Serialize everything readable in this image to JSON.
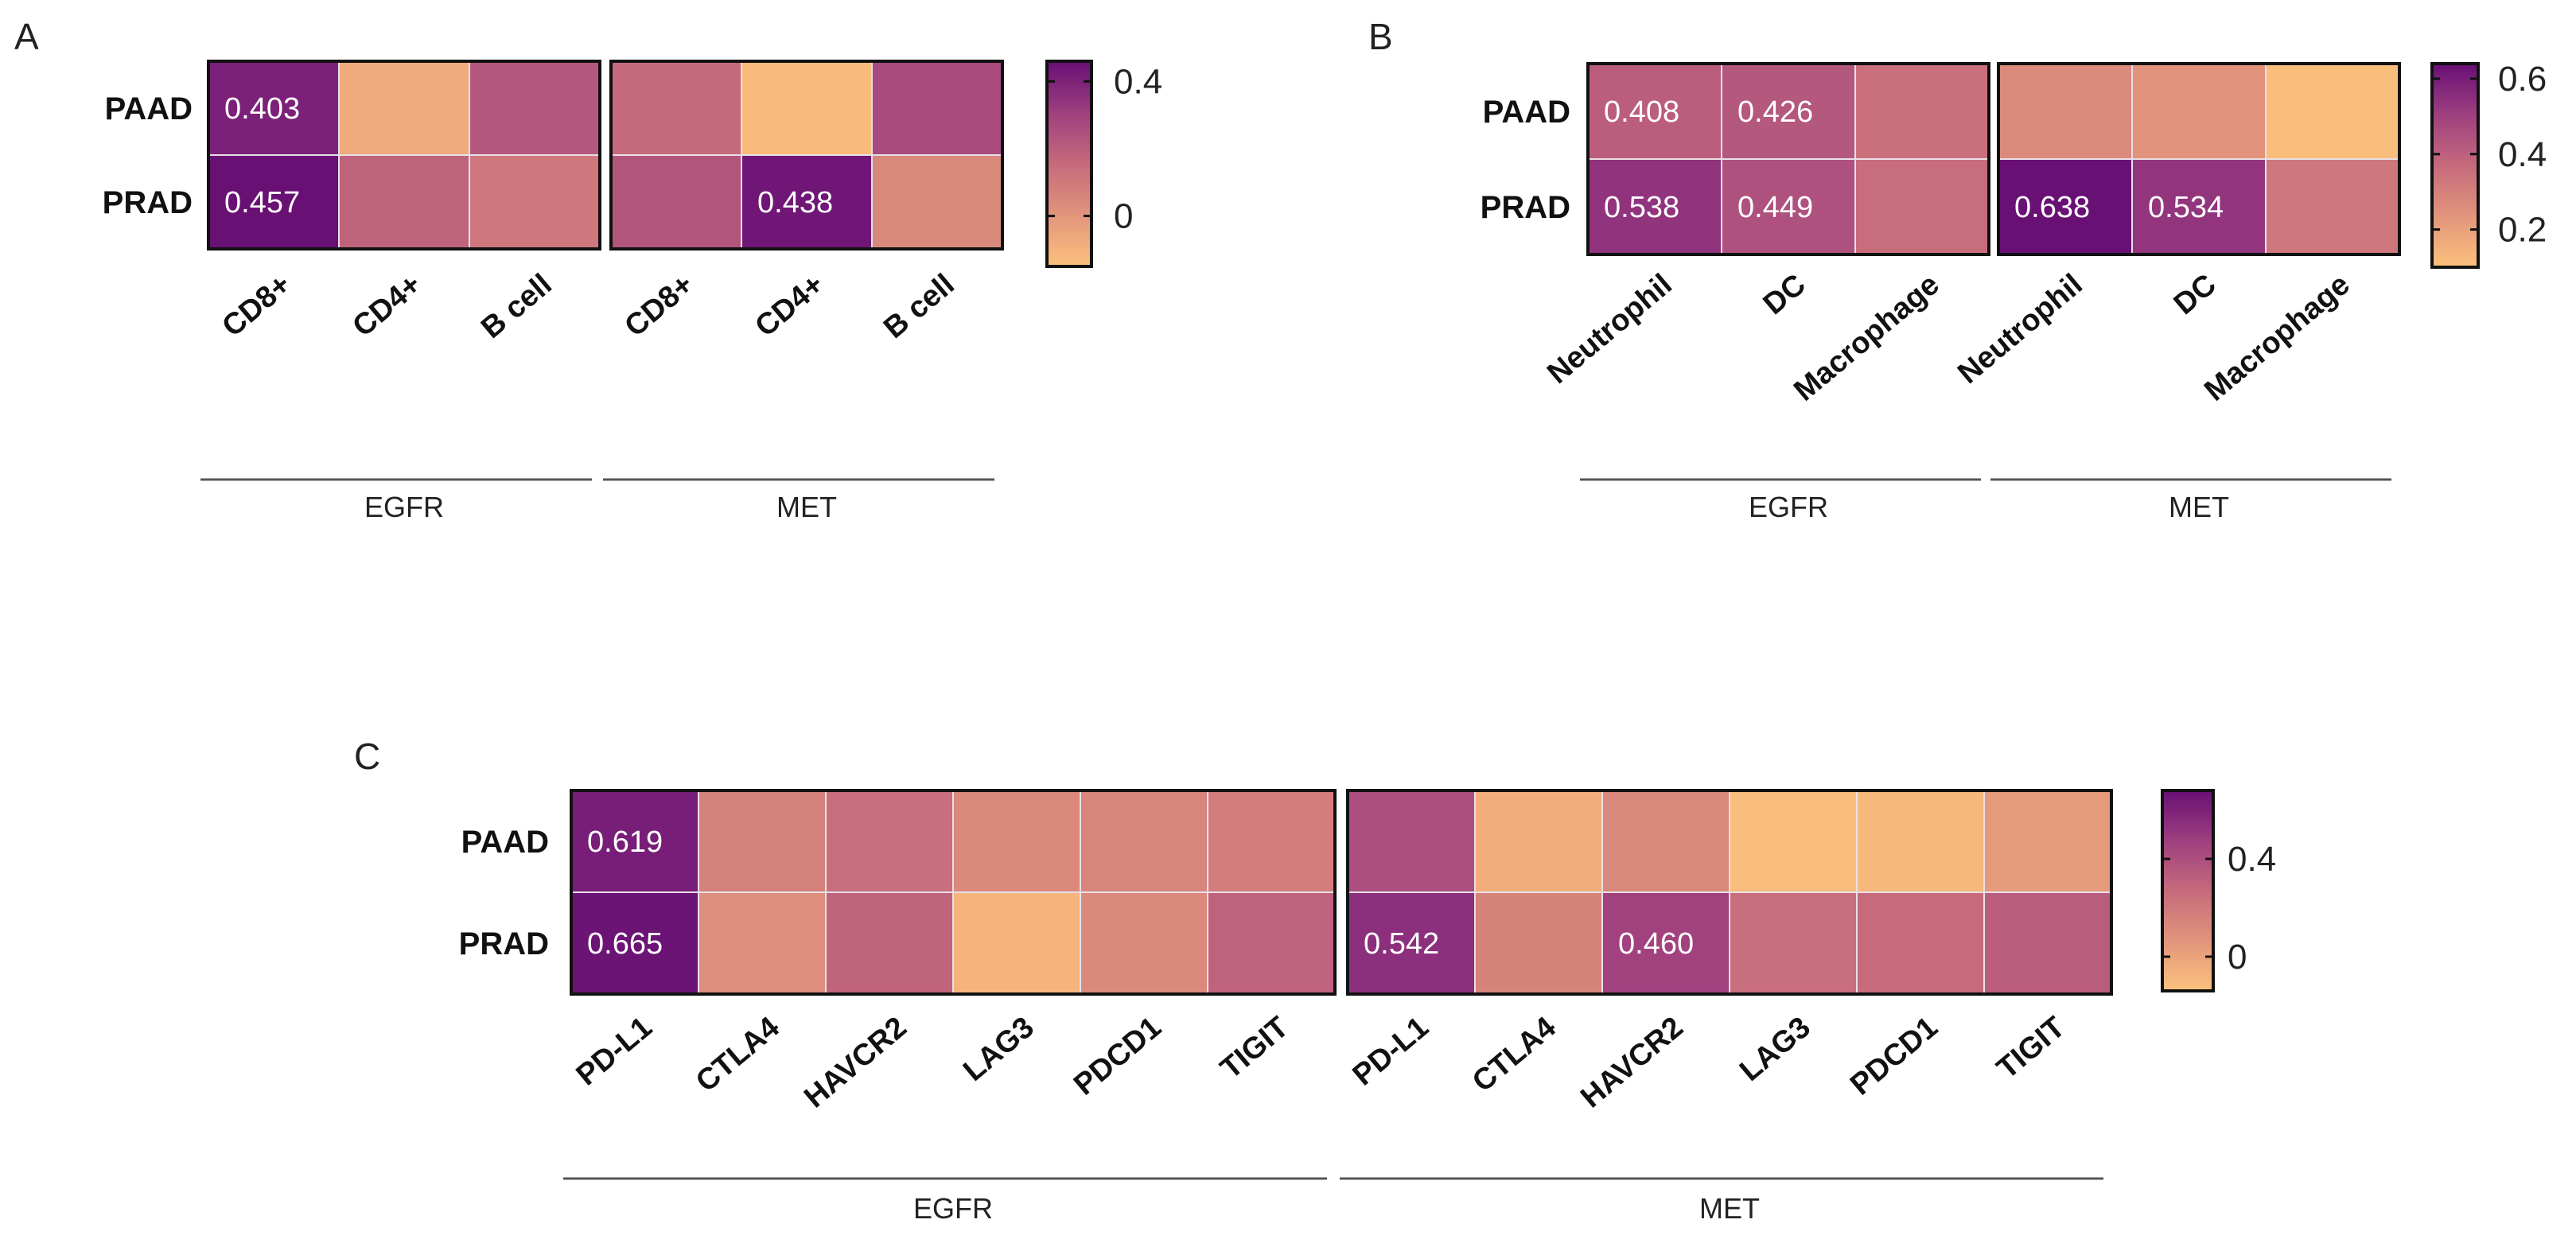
{
  "colors": {
    "scale": [
      "#fcc17c",
      "#e2957c",
      "#c66a7c",
      "#9e3f7f",
      "#680f75"
    ],
    "grid": "#e8e0e8",
    "frame": "#111111"
  },
  "chart_data": [
    {
      "type": "heatmap",
      "panel": "A",
      "rows": [
        "PAAD",
        "PRAD"
      ],
      "groups": [
        {
          "name": "EGFR",
          "columns": [
            "CD8+",
            "CD4+",
            "B cell"
          ]
        },
        {
          "name": "MET",
          "columns": [
            "CD8+",
            "CD4+",
            "B cell"
          ]
        }
      ],
      "values": [
        [
          0.403,
          -0.07,
          0.22,
          0.16,
          -0.13,
          0.27
        ],
        [
          0.457,
          0.18,
          0.11,
          0.23,
          0.438,
          0.05
        ]
      ],
      "labels": [
        [
          "0.403",
          "",
          "",
          "",
          "",
          ""
        ],
        [
          "0.457",
          "",
          "",
          "",
          "0.438",
          ""
        ]
      ],
      "colorbar": {
        "min": -0.15,
        "max": 0.46,
        "ticks": [
          0.4,
          0
        ],
        "tick_labels": [
          "0.4",
          "0"
        ]
      }
    },
    {
      "type": "heatmap",
      "panel": "B",
      "rows": [
        "PAAD",
        "PRAD"
      ],
      "groups": [
        {
          "name": "EGFR",
          "columns": [
            "Neutrophil",
            "DC",
            "Macrophage"
          ]
        },
        {
          "name": "MET",
          "columns": [
            "Neutrophil",
            "DC",
            "Macrophage"
          ]
        }
      ],
      "values": [
        [
          0.408,
          0.426,
          0.35,
          0.27,
          0.24,
          0.11
        ],
        [
          0.538,
          0.449,
          0.36,
          0.638,
          0.534,
          0.33
        ]
      ],
      "labels": [
        [
          "0.408",
          "0.426",
          "",
          "",
          "",
          ""
        ],
        [
          "0.538",
          "0.449",
          "",
          "0.638",
          "0.534",
          ""
        ]
      ],
      "colorbar": {
        "min": 0.1,
        "max": 0.64,
        "ticks": [
          0.6,
          0.4,
          0.2
        ],
        "tick_labels": [
          "0.6",
          "0.4",
          "0.2"
        ]
      }
    },
    {
      "type": "heatmap",
      "panel": "C",
      "rows": [
        "PAAD",
        "PRAD"
      ],
      "groups": [
        {
          "name": "EGFR",
          "columns": [
            "PD-L1",
            "CTLA4",
            "HAVCR2",
            "LAG3",
            "PDCD1",
            "TIGIT"
          ]
        },
        {
          "name": "MET",
          "columns": [
            "PD-L1",
            "CTLA4",
            "HAVCR2",
            "LAG3",
            "PDCD1",
            "TIGIT"
          ]
        }
      ],
      "values": [
        [
          0.619,
          0.16,
          0.25,
          0.12,
          0.14,
          0.18,
          0.4,
          -0.05,
          0.12,
          -0.12,
          -0.1,
          0.04
        ],
        [
          0.665,
          0.1,
          0.3,
          -0.08,
          0.12,
          0.31,
          0.542,
          0.15,
          0.46,
          0.25,
          0.27,
          0.33
        ]
      ],
      "labels": [
        [
          "0.619",
          "",
          "",
          "",
          "",
          "",
          "",
          "",
          "",
          "",
          "",
          ""
        ],
        [
          "0.665",
          "",
          "",
          "",
          "",
          "",
          "0.542",
          "",
          "0.460",
          "",
          "",
          ""
        ]
      ],
      "colorbar": {
        "min": -0.14,
        "max": 0.68,
        "ticks": [
          0.4,
          0
        ],
        "tick_labels": [
          "0.4",
          "0"
        ]
      }
    }
  ]
}
